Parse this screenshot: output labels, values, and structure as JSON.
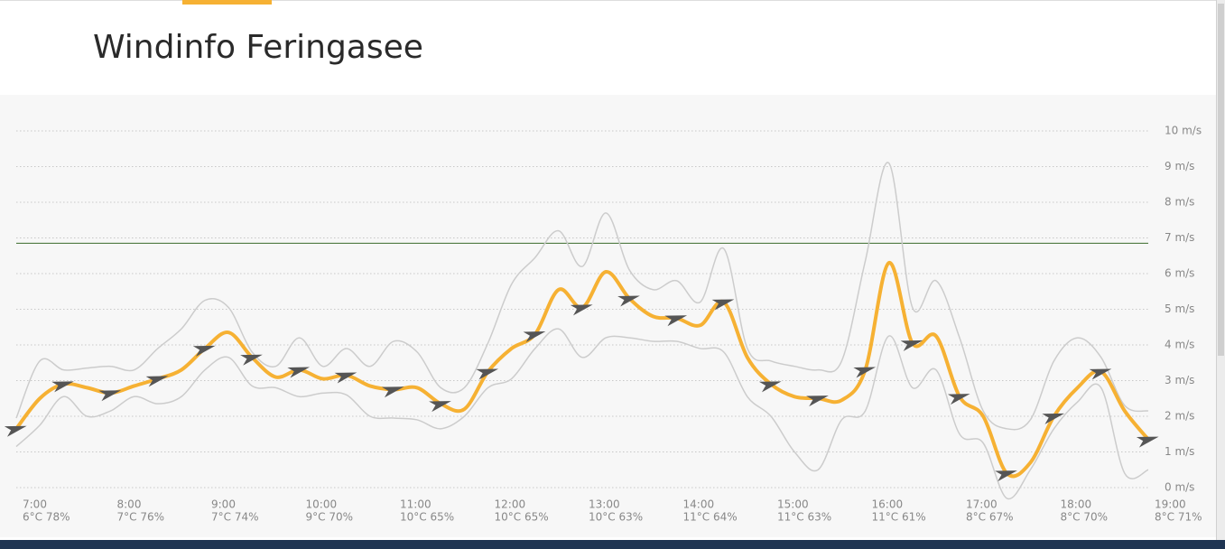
{
  "page_title": "Windinfo Feringasee",
  "chart_data": {
    "type": "line",
    "x": [
      7,
      7.25,
      7.5,
      7.75,
      8,
      8.25,
      8.5,
      8.75,
      9,
      9.25,
      9.5,
      9.75,
      10,
      10.25,
      10.5,
      10.75,
      11,
      11.25,
      11.5,
      11.75,
      12,
      12.25,
      12.5,
      12.75,
      13,
      13.25,
      13.5,
      13.75,
      14,
      14.25,
      14.5,
      14.75,
      15,
      15.25,
      15.5,
      15.75,
      16,
      16.25,
      16.5,
      16.75,
      17,
      17.25,
      17.5,
      17.75,
      18,
      18.25,
      18.5,
      18.75,
      19
    ],
    "series": [
      {
        "color": "#cccccc",
        "values": [
          1.95,
          3.55,
          3.3,
          3.35,
          3.4,
          3.3,
          3.9,
          4.45,
          5.25,
          5.05,
          3.8,
          3.4,
          4.2,
          3.4,
          3.9,
          3.4,
          4.1,
          3.8,
          2.8,
          2.8,
          4.05,
          5.7,
          6.45,
          7.2,
          6.2,
          7.7,
          6.1,
          5.55,
          5.8,
          5.2,
          6.7,
          3.9,
          3.55,
          3.4,
          3.3,
          3.55,
          6.35,
          9.1,
          5.05,
          5.8,
          4.2,
          2.15,
          1.65,
          1.9,
          3.55,
          4.2,
          3.65,
          2.3,
          2.15
        ]
      },
      {
        "color": "#cccccc",
        "values": [
          1.15,
          1.75,
          2.55,
          2.0,
          2.15,
          2.55,
          2.35,
          2.55,
          3.3,
          3.65,
          2.85,
          2.8,
          2.55,
          2.65,
          2.6,
          2.0,
          1.95,
          1.9,
          1.65,
          2.0,
          2.8,
          3.05,
          3.9,
          4.45,
          3.65,
          4.2,
          4.2,
          4.1,
          4.1,
          3.9,
          3.8,
          2.55,
          2.0,
          1.0,
          0.5,
          1.9,
          2.15,
          4.25,
          2.8,
          3.3,
          1.5,
          1.25,
          -0.3,
          0.5,
          1.65,
          2.4,
          2.8,
          0.4,
          0.5
        ]
      },
      {
        "color": "#f6b133",
        "values": [
          1.65,
          2.5,
          2.9,
          2.8,
          2.65,
          2.85,
          3.05,
          3.3,
          3.9,
          4.35,
          3.65,
          3.1,
          3.3,
          3.05,
          3.15,
          2.85,
          2.75,
          2.8,
          2.35,
          2.2,
          3.25,
          3.9,
          4.3,
          5.55,
          5.05,
          6.05,
          5.3,
          4.8,
          4.75,
          4.55,
          5.2,
          3.65,
          2.9,
          2.55,
          2.5,
          2.45,
          3.3,
          6.3,
          4.05,
          4.25,
          2.55,
          2.0,
          0.4,
          0.7,
          2.0,
          2.8,
          3.25,
          2.15,
          1.35
        ]
      }
    ],
    "threshold": 6.85,
    "threshold_color": "#3a6b2a",
    "xlim": [
      7,
      19
    ],
    "xticks": [
      {
        "value": 7,
        "label": "7:00"
      },
      {
        "value": 8,
        "label": "8:00"
      },
      {
        "value": 9,
        "label": "9:00"
      },
      {
        "value": 10,
        "label": "10:00"
      },
      {
        "value": 11,
        "label": "11:00"
      },
      {
        "value": 12,
        "label": "12:00"
      },
      {
        "value": 13,
        "label": "13:00"
      },
      {
        "value": 14,
        "label": "14:00"
      },
      {
        "value": 15,
        "label": "15:00"
      },
      {
        "value": 16,
        "label": "16:00"
      },
      {
        "value": 17,
        "label": "17:00"
      },
      {
        "value": 18,
        "label": "18:00"
      },
      {
        "value": 19,
        "label": "19:00"
      }
    ],
    "weather": [
      "6°C 78%",
      "7°C 76%",
      "7°C 74%",
      "9°C 70%",
      "10°C 65%",
      "10°C 65%",
      "10°C 63%",
      "11°C 64%",
      "11°C 63%",
      "11°C 61%",
      "8°C 67%",
      "8°C 70%",
      "8°C 71%"
    ],
    "ylim": [
      0,
      10
    ],
    "yticks": [
      {
        "value": 0,
        "label": "0 m/s"
      },
      {
        "value": 1,
        "label": "1 m/s"
      },
      {
        "value": 2,
        "label": "2 m/s"
      },
      {
        "value": 3,
        "label": "3 m/s"
      },
      {
        "value": 4,
        "label": "4 m/s"
      },
      {
        "value": 5,
        "label": "5 m/s"
      },
      {
        "value": 6,
        "label": "6 m/s"
      },
      {
        "value": 7,
        "label": "7 m/s"
      },
      {
        "value": 8,
        "label": "8 m/s"
      },
      {
        "value": 9,
        "label": "9 m/s"
      },
      {
        "value": 10,
        "label": "10 m/s"
      }
    ],
    "grid": true
  }
}
